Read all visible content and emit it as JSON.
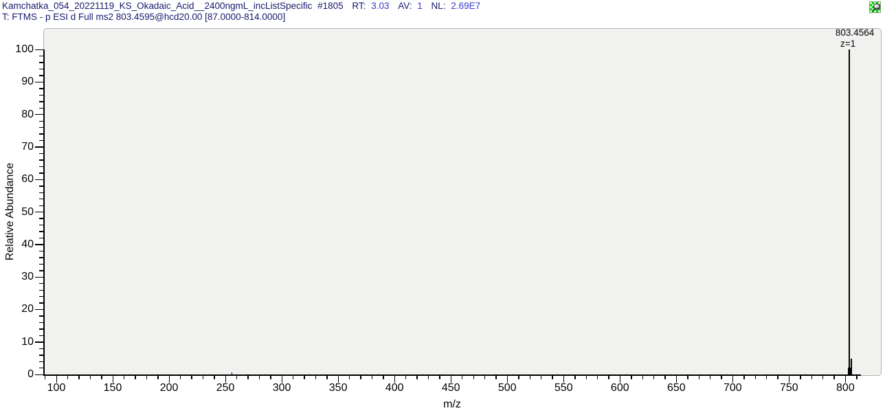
{
  "header": {
    "filename": "Kamchatka_054_20221119_KS_Okadaic_Acid__2400ngmL_incListSpecific",
    "scan_number": "#1805",
    "rt_label": "RT:",
    "rt_value": "3.03",
    "av_label": "AV:",
    "av_value": "1",
    "nl_label": "NL:",
    "nl_value": "2.69E7",
    "scan_filter": "T: FTMS - p ESI d Full ms2 803.4595@hcd20.00 [87.0000-814.0000]"
  },
  "icons": {
    "pushpin": "pushpin-icon"
  },
  "colors": {
    "header_text": "#18186e",
    "header_value": "#3a3ace",
    "plot_background": "#f1f1f0",
    "plot_border": "#b0b0b0",
    "axis": "#000000",
    "icon_green": "#00d400"
  },
  "chart_data": {
    "type": "mass-spectrum-stick",
    "xlabel": "m/z",
    "ylabel": "Relative Abundance",
    "xlim": [
      87,
      814
    ],
    "ylim": [
      0,
      100
    ],
    "x_major_ticks": [
      100,
      150,
      200,
      250,
      300,
      350,
      400,
      450,
      500,
      550,
      600,
      650,
      700,
      750,
      800
    ],
    "x_minor_step": 10,
    "y_major_step": 10,
    "y_minor_step": 2,
    "peaks": [
      {
        "mz": 255.6,
        "intensity": 0.6
      },
      {
        "mz": 803.4564,
        "intensity": 100,
        "label": "803.4564",
        "charge": "z=1"
      },
      {
        "mz": 803.9,
        "intensity": 2.1,
        "cluster_width_mz": 4
      },
      {
        "mz": 805.2,
        "intensity": 4.8
      }
    ],
    "base_peak": {
      "mz": "803.4564",
      "charge": "z=1",
      "intensity_pct": 100
    }
  }
}
